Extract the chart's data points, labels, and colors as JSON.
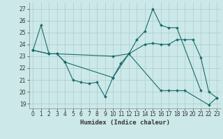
{
  "xlabel": "Humidex (Indice chaleur)",
  "background_color": "#cce8e8",
  "grid_color": "#aacccc",
  "line_color": "#1a6b6b",
  "xlim": [
    -0.5,
    23.5
  ],
  "ylim": [
    18.6,
    27.5
  ],
  "yticks": [
    19,
    20,
    21,
    22,
    23,
    24,
    25,
    26,
    27
  ],
  "xticks": [
    0,
    1,
    2,
    3,
    4,
    5,
    6,
    7,
    8,
    9,
    10,
    11,
    12,
    13,
    14,
    15,
    16,
    17,
    18,
    19,
    20,
    21,
    22,
    23
  ],
  "line1_x": [
    0,
    1,
    2,
    3,
    4,
    5,
    6,
    7,
    8,
    9,
    10,
    11,
    12,
    13,
    14,
    15,
    16,
    17,
    18,
    21
  ],
  "line1_y": [
    23.5,
    25.6,
    23.2,
    23.2,
    22.5,
    21.0,
    20.8,
    20.7,
    20.8,
    19.6,
    21.2,
    22.4,
    23.2,
    24.4,
    25.1,
    27.0,
    25.6,
    25.4,
    25.4,
    20.1
  ],
  "line2_x": [
    0,
    2,
    3,
    10,
    12,
    14,
    15,
    16,
    17,
    18,
    19,
    20,
    21,
    22,
    23
  ],
  "line2_y": [
    23.5,
    23.2,
    23.2,
    23.0,
    23.2,
    24.0,
    24.1,
    24.0,
    24.0,
    24.4,
    24.4,
    24.4,
    22.9,
    20.0,
    19.5
  ],
  "line3_x": [
    0,
    2,
    3,
    4,
    10,
    12,
    16,
    17,
    18,
    19,
    22,
    23
  ],
  "line3_y": [
    23.5,
    23.2,
    23.2,
    22.5,
    21.2,
    23.2,
    20.1,
    20.1,
    20.1,
    20.1,
    18.9,
    19.5
  ]
}
